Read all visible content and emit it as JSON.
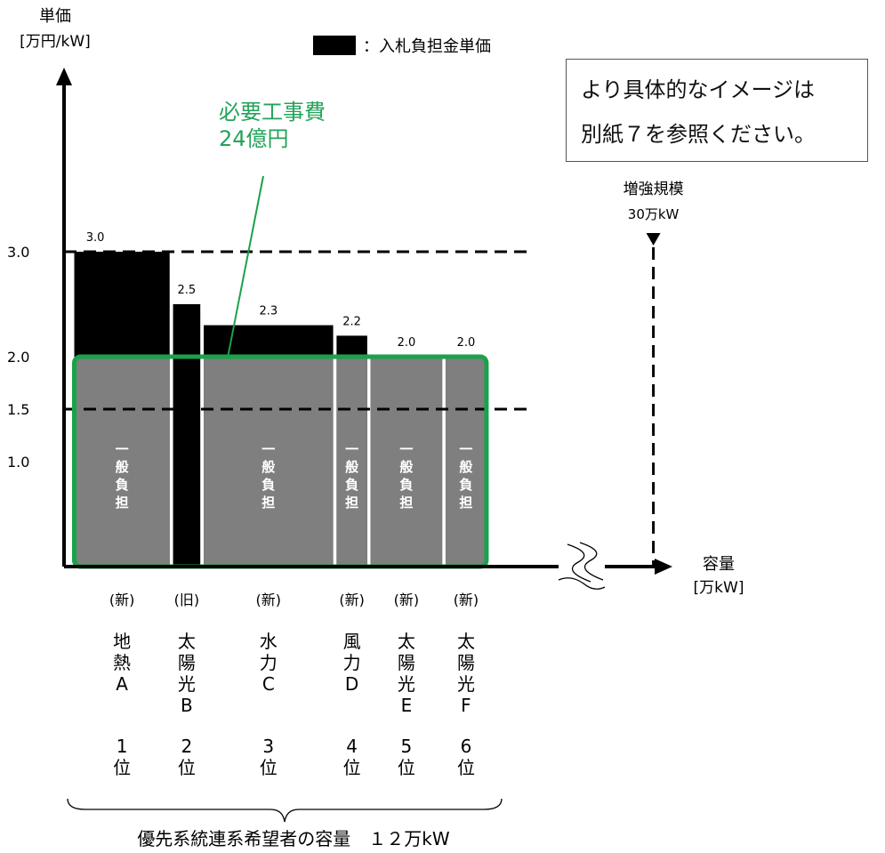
{
  "y_title": "単価",
  "y_unit": "[万円/kW]",
  "x_title": "容量",
  "x_unit": "[万kW]",
  "legend_label": "：入札負担金単価",
  "note": {
    "line1": "より具体的なイメージは",
    "line2": "別紙７を参照ください。"
  },
  "cost_label": {
    "line1": "必要工事費",
    "line2": "24億円"
  },
  "expansion": {
    "label": "増強規模",
    "value": "30万kW"
  },
  "bottom_caption": "優先系統連系希望者の容量　１２万kW",
  "band_label": "一般負担",
  "colors": {
    "bid_cost": "#000000",
    "general_share": "#7f7f7f",
    "cost_frame": "#1aa24a",
    "cost_text": "#23a35a",
    "axis": "#000000"
  },
  "chart_data": {
    "type": "bar",
    "ylim": [
      0,
      4.15
    ],
    "xlim": [
      0,
      19.4
    ],
    "y_ticks": [
      {
        "value": 1.0,
        "label": "1.0"
      },
      {
        "value": 1.5,
        "label": "1.5"
      },
      {
        "value": 2.0,
        "label": "2.0"
      },
      {
        "value": 3.0,
        "label": "3.0"
      }
    ],
    "reference_lines": [
      3.0,
      1.5
    ],
    "general_share_level": 2.0,
    "capacity_limit_x": 17.3,
    "applicants": [
      {
        "status": "(新)",
        "name": "地熱A",
        "rank": "1位",
        "bid_cost": 3.0,
        "x0": 0.3,
        "x1": 3.1,
        "general_share": true
      },
      {
        "status": "(旧)",
        "name": "太陽光B",
        "rank": "2位",
        "bid_cost": 2.5,
        "x0": 3.2,
        "x1": 4.0,
        "general_share": false
      },
      {
        "status": "(新)",
        "name": "水力C",
        "rank": "3位",
        "bid_cost": 2.3,
        "x0": 4.1,
        "x1": 7.9,
        "general_share": true
      },
      {
        "status": "(新)",
        "name": "風力D",
        "rank": "4位",
        "bid_cost": 2.2,
        "x0": 8.0,
        "x1": 8.9,
        "general_share": true
      },
      {
        "status": "(新)",
        "name": "太陽光E",
        "rank": "5位",
        "bid_cost": 2.0,
        "x0": 9.0,
        "x1": 11.1,
        "general_share": true
      },
      {
        "status": "(新)",
        "name": "太陽光F",
        "rank": "6位",
        "bid_cost": 2.0,
        "x0": 11.2,
        "x1": 12.4,
        "general_share": true
      }
    ]
  }
}
